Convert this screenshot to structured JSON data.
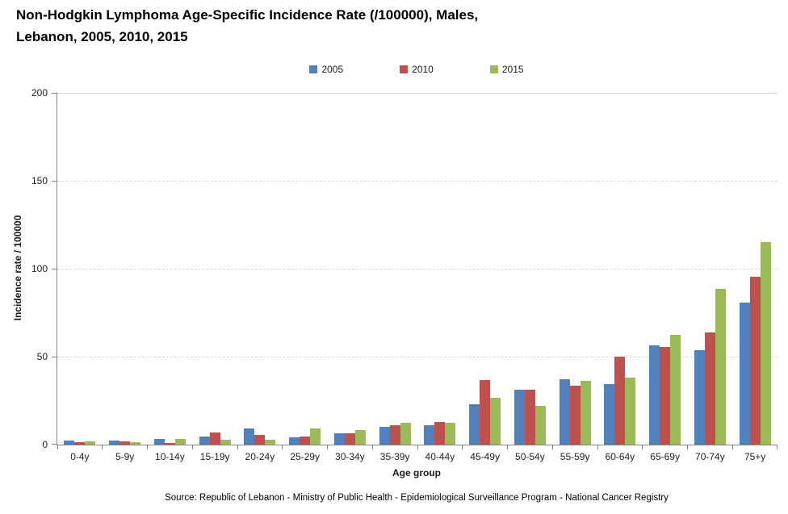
{
  "title": {
    "line1": "Non-Hodgkin Lymphoma Age-Specific Incidence Rate (/100000), Males,",
    "line2": "Lebanon, 2005, 2010, 2015"
  },
  "source": "Source: Republic of Lebanon - Ministry of Public Health - Epidemiological Surveillance Program - National Cancer Registry",
  "chart_data": {
    "type": "bar",
    "title": "Non-Hodgkin Lymphoma Age-Specific Incidence Rate (/100000), Males, Lebanon, 2005, 2010, 2015",
    "categories": [
      "0-4y",
      "5-9y",
      "10-14y",
      "15-19y",
      "20-24y",
      "25-29y",
      "30-34y",
      "35-39y",
      "40-44y",
      "45-49y",
      "50-54y",
      "55-59y",
      "60-64y",
      "65-69y",
      "70-74y",
      "75+y"
    ],
    "series": [
      {
        "name": "2005",
        "color": "#4f81bd",
        "values": [
          2.3,
          2.5,
          3.2,
          4.5,
          9.2,
          4.0,
          6.3,
          10.3,
          10.8,
          22.8,
          31.0,
          37.0,
          34.3,
          56.6,
          53.6,
          80.6
        ]
      },
      {
        "name": "2010",
        "color": "#c0504d",
        "values": [
          1.2,
          1.9,
          0.7,
          6.8,
          5.3,
          4.8,
          6.6,
          10.8,
          12.9,
          36.6,
          31.0,
          33.3,
          50.0,
          55.3,
          63.7,
          95.2
        ]
      },
      {
        "name": "2015",
        "color": "#9bbb59",
        "values": [
          1.9,
          1.2,
          3.0,
          2.9,
          2.8,
          9.0,
          8.2,
          12.4,
          12.3,
          26.5,
          21.8,
          36.4,
          38.3,
          62.3,
          88.6,
          115.2
        ]
      }
    ],
    "xlabel": "Age group",
    "ylabel": "Incidence rate / 100000",
    "ylim": [
      0,
      200
    ],
    "yticks": [
      0,
      50,
      100,
      150,
      200
    ],
    "grid": "horizontal-dashed",
    "legend_position": "top"
  }
}
